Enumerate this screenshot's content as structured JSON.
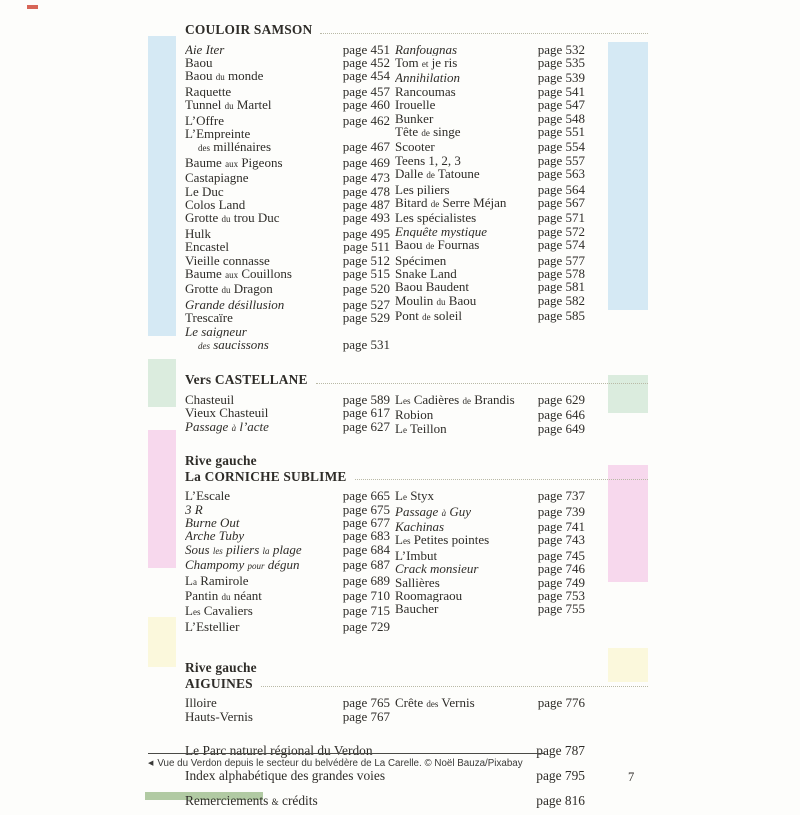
{
  "colors": {
    "blue": "#d5e9f4",
    "green": "#dbecde",
    "pink": "#f7d8ed",
    "yellow": "#fbf8dc"
  },
  "sections": [
    {
      "id": "couloir-samson",
      "header_lines": [
        "COULOIR SAMSON"
      ],
      "color": "blue",
      "left": [
        {
          "t": "Aie Iter",
          "p": "page 451",
          "i": 1
        },
        {
          "t": "Baou",
          "p": "page 452"
        },
        {
          "t": "Baou ‹du› monde",
          "p": "page 454"
        },
        {
          "t": "Raquette",
          "p": "page 457"
        },
        {
          "t": "Tunnel ‹du› Martel",
          "p": "page 460"
        },
        {
          "t": "L’Offre",
          "p": "page 462"
        },
        {
          "t": "L’Empreinte",
          "p": ""
        },
        {
          "t": "‹des› millénaires",
          "p": "page 467",
          "c": 1
        },
        {
          "t": "Baume ‹aux› Pigeons",
          "p": "page 469"
        },
        {
          "t": "Castapiagne",
          "p": "page 473"
        },
        {
          "t": "Le Duc",
          "p": "page 478"
        },
        {
          "t": "Colos Land",
          "p": "page 487"
        },
        {
          "t": "Grotte ‹du› trou Duc",
          "p": "page 493"
        },
        {
          "t": "Hulk",
          "p": "page 495"
        },
        {
          "t": "Encastel",
          "p": "page 511"
        },
        {
          "t": "Vieille connasse",
          "p": "page 512"
        },
        {
          "t": "Baume ‹aux› Couillons",
          "p": "page 515"
        },
        {
          "t": "Grotte ‹du› Dragon",
          "p": "page 520"
        },
        {
          "t": "Grande désillusion",
          "p": "page 527",
          "i": 1
        },
        {
          "t": "Trescaïre",
          "p": "page 529"
        },
        {
          "t": "Le saigneur",
          "p": "",
          "i": 1
        },
        {
          "t": "‹des› saucissons",
          "p": "page 531",
          "i": 1,
          "c": 1
        }
      ],
      "right": [
        {
          "t": "Ranfougnas",
          "p": "page 532",
          "i": 1
        },
        {
          "t": "Tom ‹et› je ris",
          "p": "page 535"
        },
        {
          "t": "Annihilation",
          "p": "page 539",
          "i": 1
        },
        {
          "t": "Rancoumas",
          "p": "page 541"
        },
        {
          "t": "Irouelle",
          "p": "page 547"
        },
        {
          "t": "Bunker",
          "p": "page 548"
        },
        {
          "t": "Tête ‹de› singe",
          "p": "page 551"
        },
        {
          "t": "Scooter",
          "p": "page 554"
        },
        {
          "t": "Teens 1, 2, 3",
          "p": "page 557"
        },
        {
          "t": "Dalle ‹de› Tatoune",
          "p": "page 563"
        },
        {
          "t": "Les piliers",
          "p": "page 564"
        },
        {
          "t": "Bitard ‹de› Serre Méjan",
          "p": "page 567"
        },
        {
          "t": "Les spécialistes",
          "p": "page 571"
        },
        {
          "t": "Enquête mystique",
          "p": "page 572",
          "i": 1
        },
        {
          "t": "Baou ‹de› Fournas",
          "p": "page 574"
        },
        {
          "t": "Spécimen",
          "p": "page 577"
        },
        {
          "t": "Snake Land",
          "p": "page 578"
        },
        {
          "t": "Baou Baudent",
          "p": "page 581"
        },
        {
          "t": "Moulin ‹du› Baou",
          "p": "page 582"
        },
        {
          "t": "Pont ‹de› soleil",
          "p": "page 585"
        }
      ]
    },
    {
      "id": "vers-castellane",
      "header_lines": [
        "Vers CASTELLANE"
      ],
      "color": "green",
      "left": [
        {
          "t": "Chasteuil",
          "p": "page 589"
        },
        {
          "t": "Vieux Chasteuil",
          "p": "page 617"
        },
        {
          "t": "Passage ‹à› l’acte",
          "p": "page 627",
          "i": 1
        }
      ],
      "right": [
        {
          "t": "L‹es› Cadières ‹de› Brandis",
          "p": "page 629"
        },
        {
          "t": "Robion",
          "p": "page 646"
        },
        {
          "t": "L‹e› Teillon",
          "p": "page 649"
        }
      ]
    },
    {
      "id": "corniche-sublime",
      "header_lines": [
        "Rive gauche",
        "La CORNICHE SUBLIME"
      ],
      "color": "pink",
      "left": [
        {
          "t": "L’Escale",
          "p": "page 665"
        },
        {
          "t": "3 R",
          "p": "page 675",
          "i": 1
        },
        {
          "t": "Burne Out",
          "p": "page 677",
          "i": 1
        },
        {
          "t": "Arche Tuby",
          "p": "page 683",
          "i": 1
        },
        {
          "t": "Sous ‹les› piliers ‹la› plage",
          "p": "page 684",
          "i": 1
        },
        {
          "t": "Champomy ‹pour› dégun",
          "p": "page 687",
          "i": 1
        },
        {
          "t": "L‹a› Ramirole",
          "p": "page 689"
        },
        {
          "t": "Pantin ‹du› néant",
          "p": "page 710"
        },
        {
          "t": "L‹es› Cavaliers",
          "p": "page 715"
        },
        {
          "t": "L’Estellier",
          "p": "page 729"
        }
      ],
      "right": [
        {
          "t": "L‹e› Styx",
          "p": "page 737"
        },
        {
          "t": "Passage ‹à› Guy",
          "p": "page 739",
          "i": 1
        },
        {
          "t": "Kachinas",
          "p": "page 741",
          "i": 1
        },
        {
          "t": "L‹es› Petites pointes",
          "p": "page 743"
        },
        {
          "t": "L’Imbut",
          "p": "page 745"
        },
        {
          "t": "Crack monsieur",
          "p": "page 746",
          "i": 1
        },
        {
          "t": "Sallières",
          "p": "page 749"
        },
        {
          "t": "Roomagraou",
          "p": "page 753"
        },
        {
          "t": "Baucher",
          "p": "page 755"
        }
      ]
    },
    {
      "id": "aiguines",
      "header_lines": [
        "Rive gauche",
        "AIGUINES"
      ],
      "color": "yellow",
      "left": [
        {
          "t": "Illoire",
          "p": "page 765"
        },
        {
          "t": "Hauts-Vernis",
          "p": "page 767"
        }
      ],
      "right": [
        {
          "t": "Crête ‹des› Vernis",
          "p": "page 776"
        }
      ]
    }
  ],
  "footer_rows": [
    {
      "t": "Le Parc naturel régional du Verdon",
      "p": "page 787"
    },
    {
      "t": "Index alphabétique des grandes voies",
      "p": "page 795"
    },
    {
      "t": "Remerciements ‹&› crédits",
      "p": "page 816"
    }
  ],
  "caption": {
    "arrow": "◀",
    "text": "Vue du Verdon depuis le secteur du belvédère de La Carelle. © Noël Bauza/Pixabay"
  },
  "page_number": "7"
}
